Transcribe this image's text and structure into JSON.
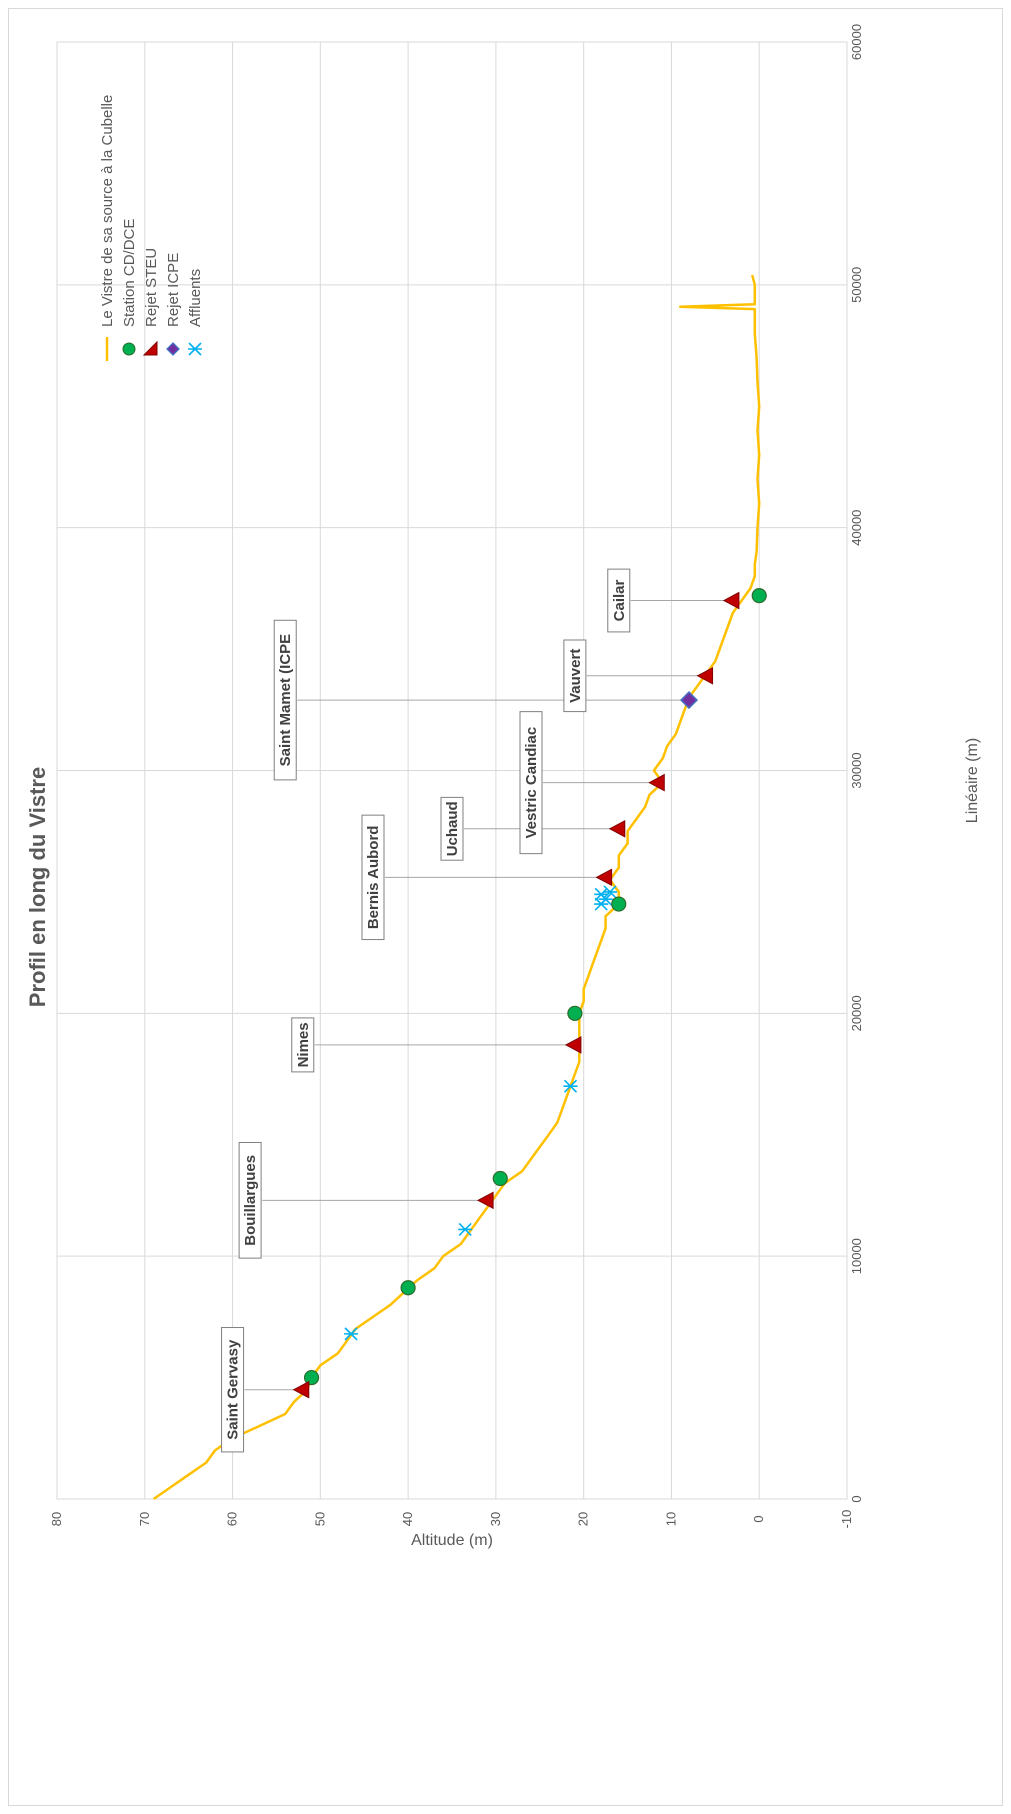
{
  "chart_data": {
    "type": "line",
    "orientation": "rotated-90-ccw",
    "title": "Profil en long du Vistre",
    "xlabel": "Linéaire (m)",
    "ylabel": "Altitude (m)",
    "xlim": [
      0,
      60000
    ],
    "ylim": [
      -10,
      80
    ],
    "x_ticks": [
      "0",
      "10000",
      "20000",
      "30000",
      "40000",
      "50000",
      "60000"
    ],
    "y_ticks": [
      "-10",
      "0",
      "10",
      "20",
      "30",
      "40",
      "50",
      "60",
      "70",
      "80"
    ],
    "grid": true,
    "legend_position": "top-right",
    "colors": {
      "profile": "#FFC000",
      "station": "#00B050",
      "rejet_steu": "#C00000",
      "rejet_icpe": "#7030A0",
      "affluents": "#00B0F0"
    },
    "series": [
      {
        "name": "Le Vistre de sa source à la Cubelle",
        "type": "line",
        "points": [
          [
            0,
            69
          ],
          [
            500,
            67
          ],
          [
            1000,
            65
          ],
          [
            1500,
            63
          ],
          [
            2000,
            62
          ],
          [
            2500,
            60
          ],
          [
            3000,
            57
          ],
          [
            3500,
            54
          ],
          [
            4000,
            53
          ],
          [
            4500,
            51.5
          ],
          [
            5000,
            51
          ],
          [
            5500,
            50
          ],
          [
            6000,
            48
          ],
          [
            6500,
            47
          ],
          [
            7000,
            46
          ],
          [
            7500,
            44
          ],
          [
            8000,
            42
          ],
          [
            8500,
            40.5
          ],
          [
            9000,
            39
          ],
          [
            9500,
            37
          ],
          [
            10000,
            36
          ],
          [
            10500,
            34
          ],
          [
            11000,
            33
          ],
          [
            11500,
            32
          ],
          [
            12000,
            31
          ],
          [
            12500,
            30
          ],
          [
            13000,
            29
          ],
          [
            13500,
            27
          ],
          [
            14000,
            26
          ],
          [
            14500,
            25
          ],
          [
            15000,
            24
          ],
          [
            15500,
            23
          ],
          [
            16000,
            22.5
          ],
          [
            16500,
            22
          ],
          [
            17000,
            21.5
          ],
          [
            17500,
            21
          ],
          [
            18000,
            20.5
          ],
          [
            18500,
            20.5
          ],
          [
            19000,
            20.5
          ],
          [
            19500,
            20.5
          ],
          [
            20000,
            20.5
          ],
          [
            20500,
            20
          ],
          [
            21000,
            20
          ],
          [
            21500,
            19.5
          ],
          [
            22000,
            19
          ],
          [
            22500,
            18.5
          ],
          [
            23000,
            18
          ],
          [
            23500,
            17.5
          ],
          [
            24000,
            17.5
          ],
          [
            24500,
            16
          ],
          [
            25000,
            16
          ],
          [
            25500,
            17
          ],
          [
            26000,
            16
          ],
          [
            26500,
            16
          ],
          [
            27000,
            15
          ],
          [
            27500,
            15
          ],
          [
            28000,
            14
          ],
          [
            28500,
            13
          ],
          [
            29000,
            12.5
          ],
          [
            29500,
            11
          ],
          [
            30000,
            12
          ],
          [
            30500,
            11
          ],
          [
            31000,
            10.5
          ],
          [
            31500,
            9.5
          ],
          [
            32000,
            9
          ],
          [
            32500,
            8.5
          ],
          [
            33000,
            8
          ],
          [
            33500,
            7
          ],
          [
            34000,
            6
          ],
          [
            34500,
            5
          ],
          [
            35000,
            4.5
          ],
          [
            35500,
            4
          ],
          [
            36000,
            3.5
          ],
          [
            36500,
            3
          ],
          [
            37000,
            2
          ],
          [
            37500,
            1
          ],
          [
            38000,
            0.5
          ],
          [
            38500,
            0.5
          ],
          [
            39000,
            0.3
          ],
          [
            40000,
            0.2
          ],
          [
            41000,
            0
          ],
          [
            42000,
            0.2
          ],
          [
            43000,
            0
          ],
          [
            44000,
            0.2
          ],
          [
            45000,
            0
          ],
          [
            46000,
            0.2
          ],
          [
            47000,
            0.3
          ],
          [
            48000,
            0.5
          ],
          [
            49000,
            0.5
          ],
          [
            49100,
            9
          ],
          [
            49200,
            0.5
          ],
          [
            50000,
            0.5
          ],
          [
            50400,
            0.8
          ]
        ]
      },
      {
        "name": "Station CD/DCE",
        "type": "scatter",
        "points": [
          [
            5000,
            51
          ],
          [
            8700,
            40
          ],
          [
            13200,
            29.5
          ],
          [
            20000,
            21
          ],
          [
            24500,
            16
          ],
          [
            37200,
            0
          ]
        ]
      },
      {
        "name": "Rejet STEU",
        "type": "scatter",
        "points": [
          [
            4500,
            52
          ],
          [
            12300,
            31
          ],
          [
            18700,
            21
          ],
          [
            25600,
            17.5
          ],
          [
            27600,
            16
          ],
          [
            29500,
            11.5
          ],
          [
            33900,
            6
          ],
          [
            37000,
            3
          ]
        ]
      },
      {
        "name": "Rejet ICPE",
        "type": "scatter",
        "points": [
          [
            32900,
            8
          ]
        ]
      },
      {
        "name": "Affluents",
        "type": "scatter",
        "points": [
          [
            6800,
            46.5
          ],
          [
            11100,
            33.5
          ],
          [
            17000,
            21.5
          ],
          [
            24500,
            18
          ],
          [
            24700,
            17.5
          ],
          [
            24900,
            18
          ],
          [
            25000,
            17
          ]
        ]
      }
    ],
    "annotations": [
      {
        "label": "Saint Gervasy",
        "x": 4500,
        "y": 52,
        "label_x": 4500,
        "label_y": 60
      },
      {
        "label": "Bouillargues",
        "x": 12300,
        "y": 31,
        "label_x": 12300,
        "label_y": 58
      },
      {
        "label": "Nimes",
        "x": 18700,
        "y": 21,
        "label_x": 18700,
        "label_y": 52
      },
      {
        "label": "Bernis Aubord",
        "x": 25600,
        "y": 17.5,
        "label_x": 25600,
        "label_y": 44
      },
      {
        "label": "Uchaud",
        "x": 27600,
        "y": 16,
        "label_x": 27600,
        "label_y": 35
      },
      {
        "label": "Vestric Candiac",
        "x": 29500,
        "y": 11.5,
        "label_x": 29500,
        "label_y": 26
      },
      {
        "label": "Saint Mamet (ICPE",
        "x": 32900,
        "y": 8,
        "label_x": 32900,
        "label_y": 54
      },
      {
        "label": "Vauvert",
        "x": 33900,
        "y": 6,
        "label_x": 33900,
        "label_y": 21
      },
      {
        "label": "Cailar",
        "x": 37000,
        "y": 3,
        "label_x": 37000,
        "label_y": 16
      }
    ]
  }
}
